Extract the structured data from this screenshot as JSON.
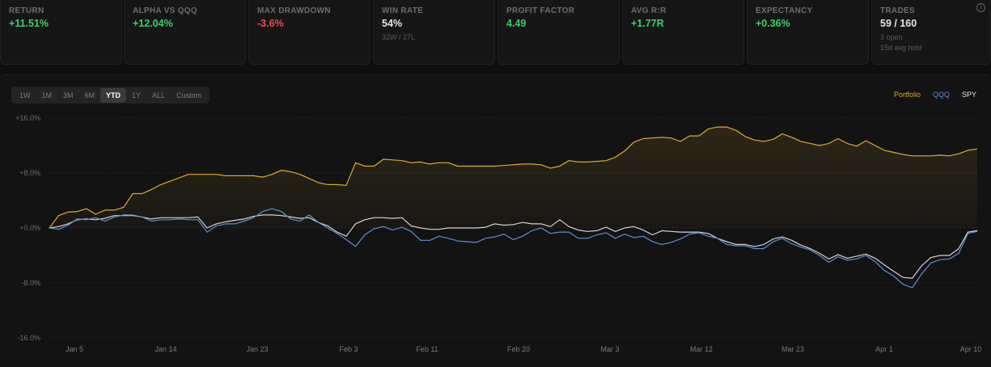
{
  "stats": [
    {
      "label": "RETURN",
      "value": "+11.51%",
      "tone": "pos"
    },
    {
      "label": "ALPHA VS QQQ",
      "value": "+12.04%",
      "tone": "pos"
    },
    {
      "label": "MAX DRAWDOWN",
      "value": "-3.6%",
      "tone": "neg"
    },
    {
      "label": "WIN RATE",
      "value": "54%",
      "tone": "neu",
      "sub": "32W / 27L"
    },
    {
      "label": "PROFIT FACTOR",
      "value": "4.49",
      "tone": "pos"
    },
    {
      "label": "AVG R:R",
      "value": "+1.77R",
      "tone": "pos"
    },
    {
      "label": "EXPECTANCY",
      "value": "+0.36%",
      "tone": "pos"
    },
    {
      "label": "TRADES",
      "value": "59 / 160",
      "tone": "neu",
      "sub": "3 open",
      "sub2": "15d avg hold"
    }
  ],
  "info_icon": "info-icon",
  "ranges": [
    "1W",
    "1M",
    "3M",
    "6M",
    "YTD",
    "1Y",
    "ALL",
    "Custom"
  ],
  "active_range": "YTD",
  "legend": [
    {
      "name": "Portfolio",
      "color": "#e0a82e"
    },
    {
      "name": "QQQ",
      "color": "#5b8fd6"
    },
    {
      "name": "SPY",
      "color": "#d4d4d4"
    }
  ],
  "chart_data": {
    "type": "line",
    "x_labels": [
      "Jan 5",
      "Jan 14",
      "Jan 23",
      "Feb 3",
      "Feb 11",
      "Feb 20",
      "Mar 3",
      "Mar 12",
      "Mar 23",
      "Apr 1",
      "Apr 10"
    ],
    "y_ticks": [
      "+16.0%",
      "+8.0%",
      "+0.0%",
      "-8.0%",
      "-16.0%"
    ],
    "ylim": [
      -16,
      16
    ],
    "x_index_range": [
      0,
      100
    ],
    "series": [
      {
        "name": "Portfolio",
        "color": "#e0a82e",
        "points": [
          [
            0,
            0
          ],
          [
            1,
            1.8
          ],
          [
            2,
            2.3
          ],
          [
            3,
            2.4
          ],
          [
            4,
            2.8
          ],
          [
            5,
            2.0
          ],
          [
            6,
            2.6
          ],
          [
            7,
            2.6
          ],
          [
            8,
            3.0
          ],
          [
            9,
            5.0
          ],
          [
            10,
            5.0
          ],
          [
            11,
            5.6
          ],
          [
            12,
            6.3
          ],
          [
            13,
            6.8
          ],
          [
            14,
            7.3
          ],
          [
            15,
            7.8
          ],
          [
            16,
            7.8
          ],
          [
            17,
            7.8
          ],
          [
            18,
            7.8
          ],
          [
            19,
            7.6
          ],
          [
            20,
            7.6
          ],
          [
            21,
            7.6
          ],
          [
            22,
            7.6
          ],
          [
            23,
            7.4
          ],
          [
            24,
            7.8
          ],
          [
            25,
            8.4
          ],
          [
            26,
            8.2
          ],
          [
            27,
            7.8
          ],
          [
            28,
            7.2
          ],
          [
            29,
            6.6
          ],
          [
            30,
            6.3
          ],
          [
            31,
            6.3
          ],
          [
            32,
            6.2
          ],
          [
            33,
            9.5
          ],
          [
            34,
            9.0
          ],
          [
            35,
            9.0
          ],
          [
            36,
            10.0
          ],
          [
            37,
            9.9
          ],
          [
            38,
            9.8
          ],
          [
            39,
            9.5
          ],
          [
            40,
            9.6
          ],
          [
            41,
            9.3
          ],
          [
            42,
            9.5
          ],
          [
            43,
            9.5
          ],
          [
            44,
            9.0
          ],
          [
            45,
            9.0
          ],
          [
            46,
            9.0
          ],
          [
            47,
            9.0
          ],
          [
            48,
            9.0
          ],
          [
            49,
            9.1
          ],
          [
            50,
            9.2
          ],
          [
            51,
            9.3
          ],
          [
            52,
            9.3
          ],
          [
            53,
            9.2
          ],
          [
            54,
            8.7
          ],
          [
            55,
            9.0
          ],
          [
            56,
            9.8
          ],
          [
            57,
            9.6
          ],
          [
            58,
            9.6
          ],
          [
            59,
            9.7
          ],
          [
            60,
            9.8
          ],
          [
            61,
            10.3
          ],
          [
            62,
            11.2
          ],
          [
            63,
            12.5
          ],
          [
            64,
            13.0
          ],
          [
            65,
            13.1
          ],
          [
            66,
            13.2
          ],
          [
            67,
            13.1
          ],
          [
            68,
            12.6
          ],
          [
            69,
            13.4
          ],
          [
            70,
            13.4
          ],
          [
            71,
            14.4
          ],
          [
            72,
            14.7
          ],
          [
            73,
            14.7
          ],
          [
            74,
            14.2
          ],
          [
            75,
            13.3
          ],
          [
            76,
            12.8
          ],
          [
            77,
            12.6
          ],
          [
            78,
            12.9
          ],
          [
            79,
            13.7
          ],
          [
            80,
            13.2
          ],
          [
            81,
            12.6
          ],
          [
            82,
            12.3
          ],
          [
            83,
            12.0
          ],
          [
            84,
            12.3
          ],
          [
            85,
            13.0
          ],
          [
            86,
            12.3
          ],
          [
            87,
            11.9
          ],
          [
            88,
            12.7
          ],
          [
            89,
            12.0
          ],
          [
            90,
            11.3
          ],
          [
            91,
            11.0
          ],
          [
            92,
            10.7
          ],
          [
            93,
            10.5
          ],
          [
            94,
            10.5
          ],
          [
            95,
            10.5
          ],
          [
            96,
            10.6
          ],
          [
            97,
            10.5
          ],
          [
            98,
            10.8
          ],
          [
            99,
            11.3
          ],
          [
            100,
            11.5
          ]
        ]
      },
      {
        "name": "QQQ",
        "color": "#5b8fd6",
        "points": [
          [
            0,
            0
          ],
          [
            1,
            -0.2
          ],
          [
            2,
            0.4
          ],
          [
            3,
            1.3
          ],
          [
            4,
            1.2
          ],
          [
            5,
            1.5
          ],
          [
            6,
            1.0
          ],
          [
            7,
            1.6
          ],
          [
            8,
            1.9
          ],
          [
            9,
            1.9
          ],
          [
            10,
            1.6
          ],
          [
            11,
            1.0
          ],
          [
            12,
            1.2
          ],
          [
            13,
            1.2
          ],
          [
            14,
            1.3
          ],
          [
            15,
            1.2
          ],
          [
            16,
            1.2
          ],
          [
            17,
            -0.6
          ],
          [
            18,
            0.3
          ],
          [
            19,
            0.6
          ],
          [
            20,
            0.6
          ],
          [
            21,
            1.0
          ],
          [
            22,
            1.5
          ],
          [
            23,
            2.4
          ],
          [
            24,
            2.8
          ],
          [
            25,
            2.4
          ],
          [
            26,
            1.3
          ],
          [
            27,
            1.0
          ],
          [
            28,
            1.9
          ],
          [
            29,
            0.8
          ],
          [
            30,
            0.0
          ],
          [
            31,
            -0.8
          ],
          [
            32,
            -1.7
          ],
          [
            33,
            -2.7
          ],
          [
            34,
            -1.0
          ],
          [
            35,
            -0.1
          ],
          [
            36,
            0.2
          ],
          [
            37,
            -0.3
          ],
          [
            38,
            0.1
          ],
          [
            39,
            -0.5
          ],
          [
            40,
            -1.8
          ],
          [
            41,
            -1.8
          ],
          [
            42,
            -1.2
          ],
          [
            43,
            -1.5
          ],
          [
            44,
            -1.9
          ],
          [
            45,
            -2.0
          ],
          [
            46,
            -2.1
          ],
          [
            47,
            -1.5
          ],
          [
            48,
            -1.3
          ],
          [
            49,
            -0.9
          ],
          [
            50,
            -1.7
          ],
          [
            51,
            -1.2
          ],
          [
            52,
            -0.4
          ],
          [
            53,
            0.0
          ],
          [
            54,
            -0.8
          ],
          [
            55,
            -0.6
          ],
          [
            56,
            -0.6
          ],
          [
            57,
            -1.5
          ],
          [
            58,
            -1.5
          ],
          [
            59,
            -1.0
          ],
          [
            60,
            -0.7
          ],
          [
            61,
            -1.5
          ],
          [
            62,
            -0.9
          ],
          [
            63,
            -1.4
          ],
          [
            64,
            -1.2
          ],
          [
            65,
            -2.0
          ],
          [
            66,
            -2.4
          ],
          [
            67,
            -2.1
          ],
          [
            68,
            -1.6
          ],
          [
            69,
            -0.9
          ],
          [
            70,
            -0.7
          ],
          [
            71,
            -1.2
          ],
          [
            72,
            -1.5
          ],
          [
            73,
            -2.4
          ],
          [
            74,
            -2.6
          ],
          [
            75,
            -2.6
          ],
          [
            76,
            -3.0
          ],
          [
            77,
            -3.0
          ],
          [
            78,
            -2.0
          ],
          [
            79,
            -1.5
          ],
          [
            80,
            -2.3
          ],
          [
            81,
            -2.8
          ],
          [
            82,
            -3.2
          ],
          [
            83,
            -4.0
          ],
          [
            84,
            -5.0
          ],
          [
            85,
            -4.2
          ],
          [
            86,
            -4.7
          ],
          [
            87,
            -4.5
          ],
          [
            88,
            -4.0
          ],
          [
            89,
            -4.9
          ],
          [
            90,
            -6.2
          ],
          [
            91,
            -7.0
          ],
          [
            92,
            -8.2
          ],
          [
            93,
            -8.7
          ],
          [
            94,
            -6.7
          ],
          [
            95,
            -5.1
          ],
          [
            96,
            -4.6
          ],
          [
            97,
            -4.5
          ],
          [
            98,
            -3.7
          ],
          [
            99,
            -0.8
          ],
          [
            100,
            -0.5
          ]
        ]
      },
      {
        "name": "SPY",
        "color": "#d4d4d4",
        "points": [
          [
            0,
            0
          ],
          [
            1,
            0.2
          ],
          [
            2,
            0.6
          ],
          [
            3,
            1.2
          ],
          [
            4,
            1.3
          ],
          [
            5,
            1.2
          ],
          [
            6,
            1.4
          ],
          [
            7,
            1.8
          ],
          [
            8,
            1.8
          ],
          [
            9,
            1.8
          ],
          [
            10,
            1.6
          ],
          [
            11,
            1.3
          ],
          [
            12,
            1.5
          ],
          [
            13,
            1.5
          ],
          [
            14,
            1.5
          ],
          [
            15,
            1.5
          ],
          [
            16,
            1.6
          ],
          [
            17,
            0.0
          ],
          [
            18,
            0.6
          ],
          [
            19,
            0.9
          ],
          [
            20,
            1.1
          ],
          [
            21,
            1.3
          ],
          [
            22,
            1.7
          ],
          [
            23,
            1.9
          ],
          [
            24,
            1.9
          ],
          [
            25,
            1.8
          ],
          [
            26,
            1.6
          ],
          [
            27,
            1.4
          ],
          [
            28,
            1.5
          ],
          [
            29,
            0.8
          ],
          [
            30,
            0.3
          ],
          [
            31,
            -0.6
          ],
          [
            32,
            -1.2
          ],
          [
            33,
            0.6
          ],
          [
            34,
            1.2
          ],
          [
            35,
            1.5
          ],
          [
            36,
            1.5
          ],
          [
            37,
            1.4
          ],
          [
            38,
            1.5
          ],
          [
            39,
            0.3
          ],
          [
            40,
            0.0
          ],
          [
            41,
            -0.2
          ],
          [
            42,
            -0.2
          ],
          [
            43,
            0.0
          ],
          [
            44,
            0.0
          ],
          [
            45,
            0.0
          ],
          [
            46,
            0.0
          ],
          [
            47,
            0.1
          ],
          [
            48,
            0.6
          ],
          [
            49,
            0.4
          ],
          [
            50,
            0.5
          ],
          [
            51,
            0.8
          ],
          [
            52,
            0.6
          ],
          [
            53,
            0.6
          ],
          [
            54,
            0.2
          ],
          [
            55,
            1.2
          ],
          [
            56,
            0.2
          ],
          [
            57,
            -0.3
          ],
          [
            58,
            -0.5
          ],
          [
            59,
            -0.4
          ],
          [
            60,
            0.1
          ],
          [
            61,
            -0.5
          ],
          [
            62,
            0.0
          ],
          [
            63,
            0.2
          ],
          [
            64,
            -0.3
          ],
          [
            65,
            -1.0
          ],
          [
            66,
            -0.4
          ],
          [
            67,
            -0.5
          ],
          [
            68,
            -0.6
          ],
          [
            69,
            -0.6
          ],
          [
            70,
            -0.6
          ],
          [
            71,
            -0.8
          ],
          [
            72,
            -1.5
          ],
          [
            73,
            -2.0
          ],
          [
            74,
            -2.4
          ],
          [
            75,
            -2.4
          ],
          [
            76,
            -2.7
          ],
          [
            77,
            -2.4
          ],
          [
            78,
            -1.6
          ],
          [
            79,
            -1.3
          ],
          [
            80,
            -1.8
          ],
          [
            81,
            -2.5
          ],
          [
            82,
            -3.0
          ],
          [
            83,
            -3.7
          ],
          [
            84,
            -4.5
          ],
          [
            85,
            -3.9
          ],
          [
            86,
            -4.4
          ],
          [
            87,
            -4.1
          ],
          [
            88,
            -3.8
          ],
          [
            89,
            -4.4
          ],
          [
            90,
            -5.4
          ],
          [
            91,
            -6.3
          ],
          [
            92,
            -7.2
          ],
          [
            93,
            -7.3
          ],
          [
            94,
            -5.5
          ],
          [
            95,
            -4.3
          ],
          [
            96,
            -4.0
          ],
          [
            97,
            -4.0
          ],
          [
            98,
            -3.0
          ],
          [
            99,
            -0.6
          ],
          [
            100,
            -0.4
          ]
        ]
      }
    ]
  }
}
